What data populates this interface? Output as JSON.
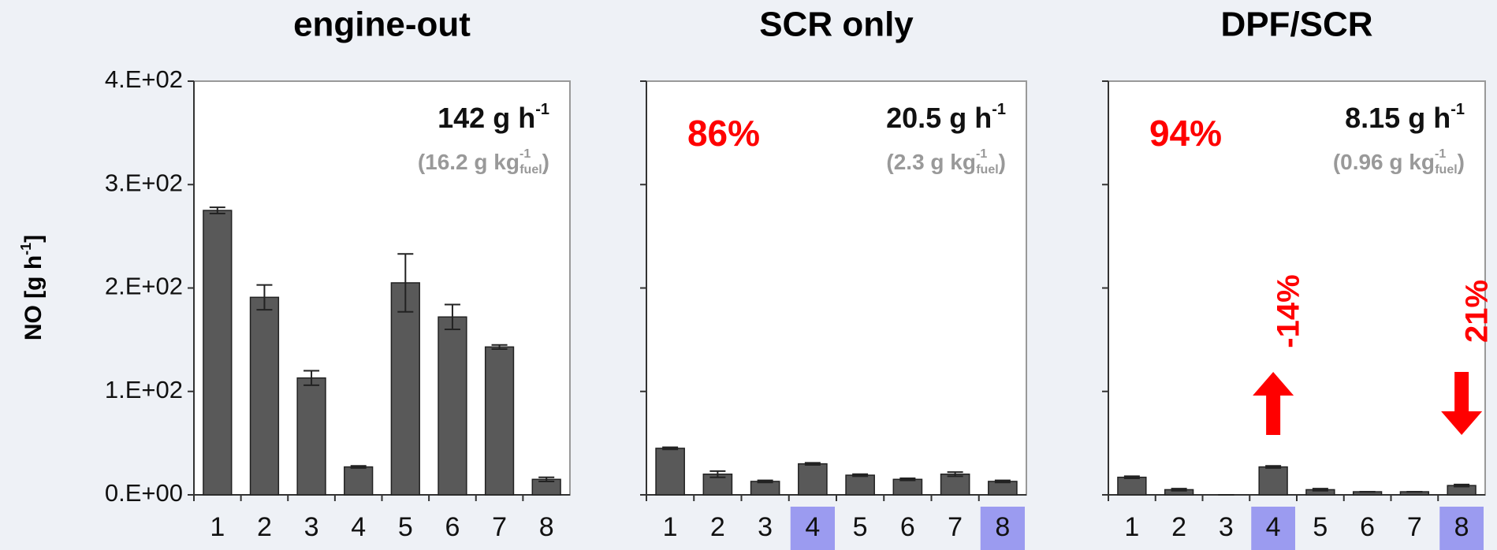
{
  "y_label": "NO [g h",
  "y_label_sup": "-1",
  "y_label_end": "]",
  "chart_data": [
    {
      "type": "bar",
      "title": "engine-out",
      "color": "#595959",
      "categories": [
        "1",
        "2",
        "3",
        "4",
        "5",
        "6",
        "7",
        "8"
      ],
      "values": [
        275,
        191,
        113,
        27,
        205,
        172,
        143,
        15
      ],
      "errors": [
        3,
        12,
        7,
        1,
        28,
        12,
        2,
        2
      ],
      "ylim": [
        0,
        400
      ],
      "yticks": [
        {
          "value": 0,
          "label": "0.E+00"
        },
        {
          "value": 100,
          "label": "1.E+02"
        },
        {
          "value": 200,
          "label": "2.E+02"
        },
        {
          "value": 300,
          "label": "3.E+02"
        },
        {
          "value": 400,
          "label": "4.E+02"
        }
      ],
      "rate": {
        "text": "142 g h",
        "sup": "-1"
      },
      "specific": {
        "text": "(16.2 g kg",
        "sup": "-1",
        "sub": "fuel",
        "end": ")"
      },
      "highlight": []
    },
    {
      "type": "bar",
      "title": "SCR only",
      "color": "#595959",
      "categories": [
        "1",
        "2",
        "3",
        "4",
        "5",
        "6",
        "7",
        "8"
      ],
      "values": [
        45,
        20,
        13,
        30,
        19,
        15,
        20,
        13
      ],
      "errors": [
        1,
        3,
        1,
        1,
        1,
        1,
        2,
        1
      ],
      "ylim": [
        0,
        400
      ],
      "yticks": [
        0,
        100,
        200,
        300,
        400
      ],
      "reduction": "86%",
      "rate": {
        "text": "20.5 g h",
        "sup": "-1"
      },
      "specific": {
        "text": "(2.3 g kg",
        "sup": "-1",
        "sub": "fuel",
        "end": ")"
      },
      "highlight": [
        3,
        7
      ]
    },
    {
      "type": "bar",
      "title": "DPF/SCR",
      "color": "#595959",
      "categories": [
        "1",
        "2",
        "3",
        "4",
        "5",
        "6",
        "7",
        "8"
      ],
      "values": [
        17,
        5,
        0,
        27,
        5,
        3,
        3,
        9
      ],
      "errors": [
        1,
        1,
        0,
        1,
        1,
        0,
        0,
        1
      ],
      "ylim": [
        0,
        400
      ],
      "yticks": [
        0,
        100,
        200,
        300,
        400
      ],
      "reduction": "94%",
      "rate": {
        "text": "8.15 g h",
        "sup": "-1"
      },
      "specific": {
        "text": "(0.96 g kg",
        "sup": "-1",
        "sub": "fuel",
        "end": ")"
      },
      "highlight": [
        3,
        7
      ],
      "annotations": [
        {
          "text": "-14%",
          "direction": "up",
          "category": 3
        },
        {
          "text": "21%",
          "direction": "down",
          "category": 7
        }
      ]
    }
  ]
}
